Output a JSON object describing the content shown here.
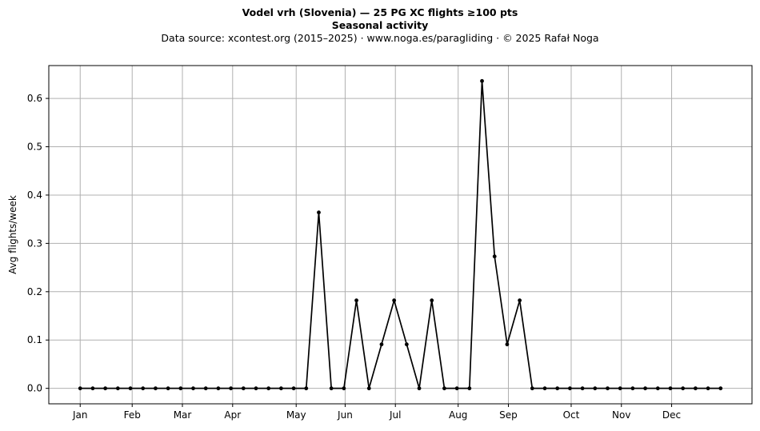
{
  "chart_data": {
    "type": "line",
    "title": "Vodel vrh (Slovenia)  —  25 PG XC flights ≥100 pts",
    "subtitle_bold": "Seasonal activity",
    "subtitle": "Data source: xcontest.org (2015–2025)  ·  www.noga.es/paragliding  ·  © 2025 Rafał Noga",
    "xlabel": "",
    "ylabel": "Avg flights/week",
    "x": [
      1,
      2,
      3,
      4,
      5,
      6,
      7,
      8,
      9,
      10,
      11,
      12,
      13,
      14,
      15,
      16,
      17,
      18,
      19,
      20,
      21,
      22,
      23,
      24,
      25,
      26,
      27,
      28,
      29,
      30,
      31,
      32,
      33,
      34,
      35,
      36,
      37,
      38,
      39,
      40,
      41,
      42,
      43,
      44,
      45,
      46,
      47,
      48,
      49,
      50,
      51,
      52
    ],
    "values": [
      0,
      0,
      0,
      0,
      0,
      0,
      0,
      0,
      0,
      0,
      0,
      0,
      0,
      0,
      0,
      0,
      0,
      0,
      0,
      0.364,
      0,
      0,
      0.182,
      0,
      0.091,
      0.182,
      0.091,
      0,
      0.182,
      0,
      0,
      0,
      0.636,
      0.273,
      0.091,
      0.182,
      0,
      0,
      0,
      0,
      0,
      0,
      0,
      0,
      0,
      0,
      0,
      0,
      0,
      0,
      0,
      0
    ],
    "xlim": [
      -1.5,
      54.5
    ],
    "ylim": [
      -0.032,
      0.668
    ],
    "x_ticks": [
      {
        "label": "Jan",
        "x": 1
      },
      {
        "label": "Feb",
        "x": 5.14
      },
      {
        "label": "Mar",
        "x": 9.14
      },
      {
        "label": "Apr",
        "x": 13.14
      },
      {
        "label": "May",
        "x": 18.2
      },
      {
        "label": "Jun",
        "x": 22.1
      },
      {
        "label": "Jul",
        "x": 26.1
      },
      {
        "label": "Aug",
        "x": 31.1
      },
      {
        "label": "Sep",
        "x": 35.1
      },
      {
        "label": "Oct",
        "x": 40.1
      },
      {
        "label": "Nov",
        "x": 44.1
      },
      {
        "label": "Dec",
        "x": 48.1
      }
    ],
    "y_ticks": [
      0.0,
      0.1,
      0.2,
      0.3,
      0.4,
      0.5,
      0.6
    ],
    "y_tick_labels": [
      "0.0",
      "0.1",
      "0.2",
      "0.3",
      "0.4",
      "0.5",
      "0.6"
    ],
    "grid": true,
    "line_color": "#000000",
    "grid_color": "#b0b0b0"
  }
}
